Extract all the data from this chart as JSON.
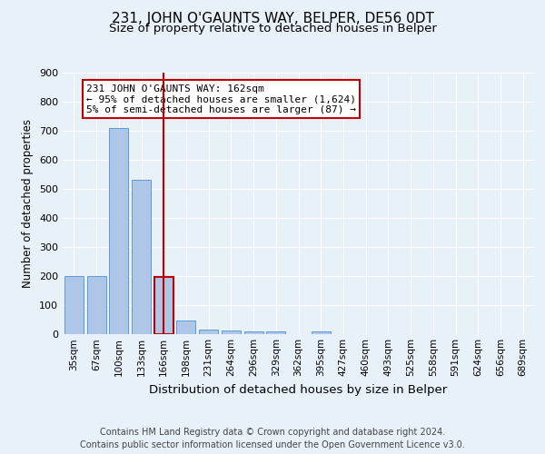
{
  "title": "231, JOHN O'GAUNTS WAY, BELPER, DE56 0DT",
  "subtitle": "Size of property relative to detached houses in Belper",
  "xlabel": "Distribution of detached houses by size in Belper",
  "ylabel": "Number of detached properties",
  "footer_line1": "Contains HM Land Registry data © Crown copyright and database right 2024.",
  "footer_line2": "Contains public sector information licensed under the Open Government Licence v3.0.",
  "categories": [
    "35sqm",
    "67sqm",
    "100sqm",
    "133sqm",
    "166sqm",
    "198sqm",
    "231sqm",
    "264sqm",
    "296sqm",
    "329sqm",
    "362sqm",
    "395sqm",
    "427sqm",
    "460sqm",
    "493sqm",
    "525sqm",
    "558sqm",
    "591sqm",
    "624sqm",
    "656sqm",
    "689sqm"
  ],
  "values": [
    200,
    200,
    710,
    530,
    195,
    45,
    15,
    12,
    8,
    7,
    0,
    8,
    0,
    0,
    0,
    0,
    0,
    0,
    0,
    0,
    0
  ],
  "bar_color": "#aec6e8",
  "bar_edge_color": "#5b9bd5",
  "highlight_bar_index": 4,
  "highlight_color": "#c00000",
  "vline_index": 4,
  "vline_color": "#c00000",
  "annotation_text": "231 JOHN O'GAUNTS WAY: 162sqm\n← 95% of detached houses are smaller (1,624)\n5% of semi-detached houses are larger (87) →",
  "annotation_box_color": "#ffffff",
  "annotation_box_edge": "#c00000",
  "ylim": [
    0,
    900
  ],
  "yticks": [
    0,
    100,
    200,
    300,
    400,
    500,
    600,
    700,
    800,
    900
  ],
  "background_color": "#e8f0f8",
  "plot_bg_color": "#e8f0f8",
  "grid_color": "#ffffff",
  "title_fontsize": 11,
  "subtitle_fontsize": 9.5,
  "xlabel_fontsize": 9.5,
  "ylabel_fontsize": 8.5,
  "tick_fontsize": 7.5,
  "annotation_fontsize": 8,
  "footer_fontsize": 7
}
